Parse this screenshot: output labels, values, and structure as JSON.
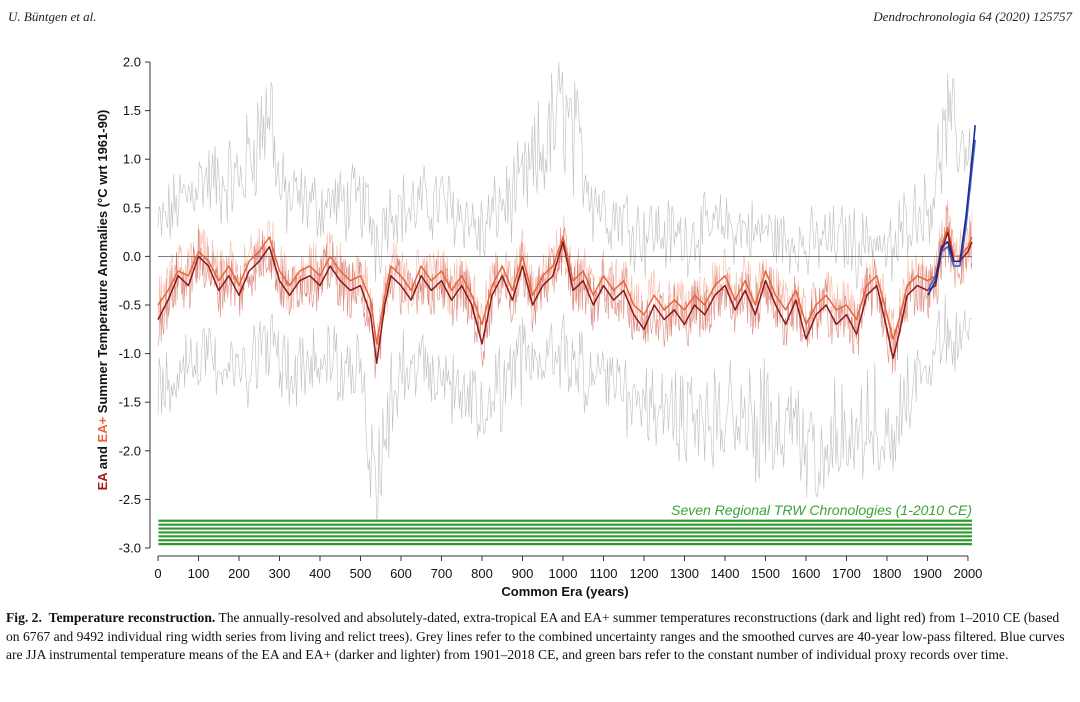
{
  "header": {
    "left": "U. Büntgen et al.",
    "right": "Dendrochronologia 64 (2020) 125757"
  },
  "chart_data": {
    "type": "line",
    "title": "",
    "xlabel": "Common Era (years)",
    "ylabel_parts": {
      "ea": "EA",
      "and": " and ",
      "eaplus": "EA+",
      "rest": " Summer Temperature Anomalies (°C wrt 1961-90)"
    },
    "xlim": [
      0,
      2010
    ],
    "ylim": [
      -3.0,
      2.0
    ],
    "xticks": [
      0,
      100,
      200,
      300,
      400,
      500,
      600,
      700,
      800,
      900,
      1000,
      1100,
      1200,
      1300,
      1400,
      1500,
      1600,
      1700,
      1800,
      1900,
      2000
    ],
    "yticks": [
      2.0,
      1.5,
      1.0,
      0.5,
      0.0,
      -0.5,
      -1.0,
      -1.5,
      -2.0,
      -2.5,
      -3.0
    ],
    "ytick_labels": [
      "2.0",
      "1.5",
      "1.0",
      "0.5",
      "0.0",
      "-0.5",
      "-1.0",
      "-1.5",
      "-2.0",
      "-2.5",
      "-3.0"
    ],
    "zero_line": 0.0,
    "annotation": "Seven Regional TRW Chronologies (1-2010 CE)",
    "proxy_bars": {
      "count": 7,
      "start": 1,
      "end": 2010,
      "top": -2.72,
      "bottom": -2.96
    },
    "series": [
      {
        "name": "EA 40-year low-pass (dark red)",
        "color": "#8b1a1a",
        "x": [
          0,
          25,
          50,
          75,
          100,
          125,
          150,
          175,
          200,
          225,
          250,
          275,
          300,
          325,
          350,
          375,
          400,
          425,
          450,
          475,
          500,
          525,
          540,
          560,
          575,
          600,
          625,
          650,
          675,
          700,
          725,
          750,
          775,
          800,
          825,
          850,
          875,
          900,
          925,
          950,
          975,
          1000,
          1025,
          1050,
          1075,
          1100,
          1125,
          1150,
          1175,
          1200,
          1225,
          1250,
          1275,
          1300,
          1325,
          1350,
          1375,
          1400,
          1425,
          1450,
          1475,
          1500,
          1525,
          1550,
          1575,
          1600,
          1625,
          1650,
          1675,
          1700,
          1725,
          1750,
          1775,
          1800,
          1815,
          1830,
          1850,
          1875,
          1900,
          1920,
          1935,
          1950,
          1965,
          1980,
          2000,
          2010
        ],
        "y": [
          -0.65,
          -0.45,
          -0.2,
          -0.3,
          0.0,
          -0.1,
          -0.35,
          -0.2,
          -0.4,
          -0.15,
          -0.05,
          0.1,
          -0.25,
          -0.4,
          -0.25,
          -0.2,
          -0.3,
          -0.1,
          -0.25,
          -0.35,
          -0.3,
          -0.6,
          -1.1,
          -0.5,
          -0.2,
          -0.3,
          -0.45,
          -0.2,
          -0.35,
          -0.25,
          -0.45,
          -0.3,
          -0.5,
          -0.9,
          -0.4,
          -0.2,
          -0.45,
          -0.1,
          -0.5,
          -0.3,
          -0.2,
          0.15,
          -0.35,
          -0.25,
          -0.5,
          -0.3,
          -0.45,
          -0.35,
          -0.6,
          -0.75,
          -0.5,
          -0.65,
          -0.55,
          -0.7,
          -0.5,
          -0.6,
          -0.4,
          -0.3,
          -0.55,
          -0.35,
          -0.6,
          -0.25,
          -0.5,
          -0.7,
          -0.45,
          -0.85,
          -0.6,
          -0.5,
          -0.7,
          -0.6,
          -0.8,
          -0.4,
          -0.3,
          -0.75,
          -1.05,
          -0.8,
          -0.4,
          -0.3,
          -0.35,
          -0.3,
          0.05,
          0.25,
          -0.05,
          -0.05,
          0.05,
          0.15
        ]
      },
      {
        "name": "EA+ 40-year low-pass (light red)",
        "color": "#e8643c",
        "x": [
          0,
          25,
          50,
          75,
          100,
          125,
          150,
          175,
          200,
          225,
          250,
          275,
          300,
          325,
          350,
          375,
          400,
          425,
          450,
          475,
          500,
          525,
          540,
          560,
          575,
          600,
          625,
          650,
          675,
          700,
          725,
          750,
          775,
          800,
          825,
          850,
          875,
          900,
          925,
          950,
          975,
          1000,
          1025,
          1050,
          1075,
          1100,
          1125,
          1150,
          1175,
          1200,
          1225,
          1250,
          1275,
          1300,
          1325,
          1350,
          1375,
          1400,
          1425,
          1450,
          1475,
          1500,
          1525,
          1550,
          1575,
          1600,
          1625,
          1650,
          1675,
          1700,
          1725,
          1750,
          1775,
          1800,
          1815,
          1830,
          1850,
          1875,
          1900,
          1920,
          1935,
          1950,
          1965,
          1980,
          2000,
          2010
        ],
        "y": [
          -0.5,
          -0.35,
          -0.15,
          -0.2,
          0.05,
          -0.05,
          -0.25,
          -0.1,
          -0.3,
          -0.05,
          0.05,
          0.2,
          -0.15,
          -0.3,
          -0.15,
          -0.1,
          -0.2,
          0.0,
          -0.15,
          -0.25,
          -0.2,
          -0.45,
          -0.9,
          -0.4,
          -0.1,
          -0.2,
          -0.35,
          -0.1,
          -0.25,
          -0.15,
          -0.35,
          -0.2,
          -0.4,
          -0.7,
          -0.3,
          -0.1,
          -0.35,
          0.0,
          -0.4,
          -0.2,
          -0.1,
          0.2,
          -0.25,
          -0.15,
          -0.4,
          -0.2,
          -0.35,
          -0.25,
          -0.5,
          -0.6,
          -0.4,
          -0.55,
          -0.45,
          -0.55,
          -0.4,
          -0.5,
          -0.3,
          -0.2,
          -0.45,
          -0.25,
          -0.5,
          -0.15,
          -0.4,
          -0.55,
          -0.35,
          -0.7,
          -0.5,
          -0.4,
          -0.55,
          -0.5,
          -0.65,
          -0.3,
          -0.2,
          -0.6,
          -0.85,
          -0.65,
          -0.3,
          -0.2,
          -0.25,
          -0.2,
          0.1,
          0.3,
          0.0,
          0.0,
          0.1,
          0.2
        ]
      },
      {
        "name": "EA JJA instrumental mean (dark blue)",
        "color": "#1f2a8a",
        "x": [
          1901,
          1920,
          1935,
          1950,
          1965,
          1980,
          1995,
          2005,
          2018
        ],
        "y": [
          -0.4,
          -0.25,
          0.1,
          0.15,
          -0.05,
          -0.05,
          0.4,
          0.8,
          1.35
        ]
      },
      {
        "name": "EA+ JJA instrumental mean (light blue)",
        "color": "#3f5fd0",
        "x": [
          1901,
          1920,
          1935,
          1950,
          1965,
          1980,
          1995,
          2005,
          2018
        ],
        "y": [
          -0.35,
          -0.2,
          0.05,
          0.1,
          -0.1,
          -0.1,
          0.3,
          0.7,
          1.2
        ]
      }
    ],
    "uncertainty": {
      "name": "Combined uncertainty ranges (grey)",
      "color": "#a9a9a9",
      "x": [
        0,
        100,
        200,
        280,
        300,
        400,
        500,
        540,
        600,
        700,
        800,
        900,
        1000,
        1100,
        1200,
        1300,
        1400,
        1500,
        1600,
        1700,
        1800,
        1850,
        1900,
        1950,
        2000,
        2010
      ],
      "upper": [
        0.6,
        1.1,
        1.2,
        2.1,
        1.0,
        0.8,
        0.9,
        0.7,
        0.8,
        0.9,
        0.6,
        1.1,
        2.1,
        0.8,
        0.6,
        0.5,
        0.6,
        0.5,
        0.4,
        0.5,
        0.3,
        0.7,
        0.8,
        1.8,
        1.6,
        1.2
      ],
      "lower": [
        -1.6,
        -1.3,
        -1.5,
        -1.2,
        -1.5,
        -1.4,
        -1.6,
        -2.8,
        -1.5,
        -1.6,
        -2.0,
        -1.4,
        -1.3,
        -1.7,
        -1.9,
        -2.1,
        -2.0,
        -2.2,
        -2.5,
        -2.1,
        -2.4,
        -1.8,
        -1.5,
        -1.0,
        -1.2,
        -1.4
      ]
    }
  },
  "caption": {
    "label": "Fig. 2.",
    "bold_title": "Temperature reconstruction.",
    "body": "The annually-resolved and absolutely-dated, extra-tropical EA and EA+ summer temperatures reconstructions (dark and light red) from 1–2010 CE (based on 6767 and 9492 individual ring width series from living and relict trees). Grey lines refer to the combined uncertainty ranges and the smoothed curves are 40-year low-pass filtered. Blue curves are JJA instrumental temperature means of the EA and EA+ (darker and lighter) from 1901–2018 CE, and green bars refer to the constant number of individual proxy records over time."
  },
  "colors": {
    "ea": "#9b1b1b",
    "eaplus": "#e8643c",
    "grey": "#b3b3b3",
    "green": "#2e9a2e",
    "blue_dark": "#1f2a8a",
    "blue_light": "#3f5fd0"
  }
}
